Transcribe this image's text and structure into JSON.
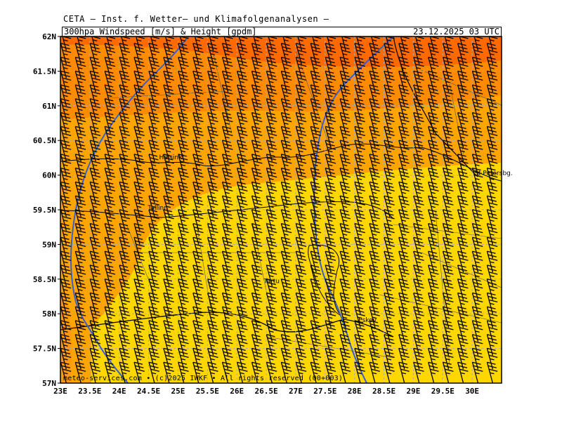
{
  "header": {
    "institute": "CETA — Inst. f. Wetter— und Klimafolgenanalysen —",
    "product": "300hpa Windspeed [m/s] & Height [gpdm]",
    "datetime": "23.12.2025 03 UTC"
  },
  "map": {
    "lat_range": [
      57,
      62
    ],
    "lon_range": [
      23,
      30.5
    ],
    "lat_labels": [
      "62N",
      "61.5N",
      "61N",
      "60.5N",
      "60N",
      "59.5N",
      "59N",
      "58.5N",
      "58N",
      "57.5N",
      "57N"
    ],
    "lon_labels": [
      "23E",
      "23.5E",
      "24E",
      "24.5E",
      "25E",
      "25.5E",
      "26E",
      "26.5E",
      "27E",
      "27.5E",
      "28E",
      "28.5E",
      "29E",
      "29.5E",
      "30E"
    ],
    "grid": "dashed",
    "colors": {
      "speed_high": "#ff6a00",
      "speed_mid_high": "#ff8c00",
      "speed_mid": "#ffa500",
      "speed_low": "#ffd700",
      "height_contour": "#3a5fcd",
      "coastline": "#000000",
      "borders": "#555555"
    },
    "cities": [
      {
        "name": "Helsinki",
        "lat": 60.17,
        "lon": 24.94
      },
      {
        "name": "St Petersbg.",
        "lat": 59.94,
        "lon": 30.3
      },
      {
        "name": "Tallinn",
        "lat": 59.44,
        "lon": 24.75
      },
      {
        "name": "Tartu",
        "lat": 58.38,
        "lon": 26.72
      },
      {
        "name": "Pskov",
        "lat": 57.82,
        "lon": 28.33
      }
    ]
  },
  "footer": "meteo-services.com • (c)2025 IWKF • All rights reserved (00+003)"
}
